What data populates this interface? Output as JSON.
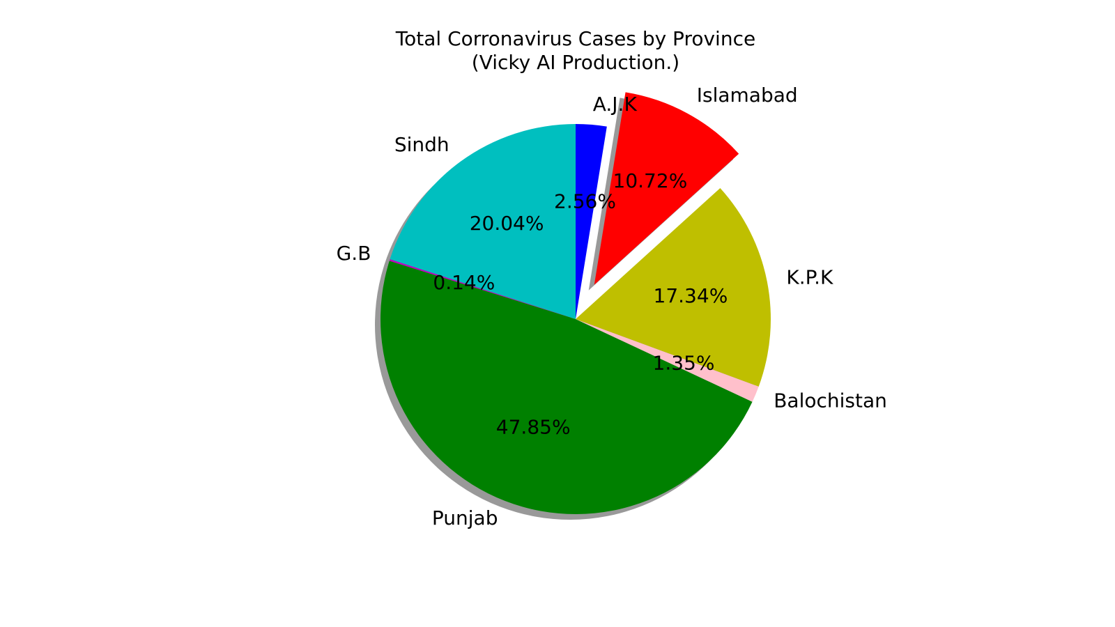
{
  "chart_data": {
    "type": "pie",
    "title": "Total Corronavirus Cases by Province",
    "subtitle": "(Vicky AI Production.)",
    "shadow": true,
    "start_angle_deg": 270,
    "direction": "counterclockwise",
    "slices": [
      {
        "label": "Sindh",
        "value": 20.04,
        "pct_label": "20.04%",
        "color": "#00bfbf",
        "explode": 0.0
      },
      {
        "label": "G.B",
        "value": 0.14,
        "pct_label": "0.14%",
        "color": "#bf00bf",
        "explode": 0.0
      },
      {
        "label": "Punjab",
        "value": 47.85,
        "pct_label": "47.85%",
        "color": "#008000",
        "explode": 0.0
      },
      {
        "label": "Balochistan",
        "value": 1.35,
        "pct_label": "1.35%",
        "color": "#ffc0cb",
        "explode": 0.0
      },
      {
        "label": "K.P.K",
        "value": 17.34,
        "pct_label": "17.34%",
        "color": "#bfbf00",
        "explode": 0.0
      },
      {
        "label": "Islamabad",
        "value": 10.72,
        "pct_label": "10.72%",
        "color": "#ff0000",
        "explode": 0.2
      },
      {
        "label": "A.J.K",
        "value": 2.56,
        "pct_label": "2.56%",
        "color": "#0000ff",
        "explode": 0.0
      }
    ]
  }
}
